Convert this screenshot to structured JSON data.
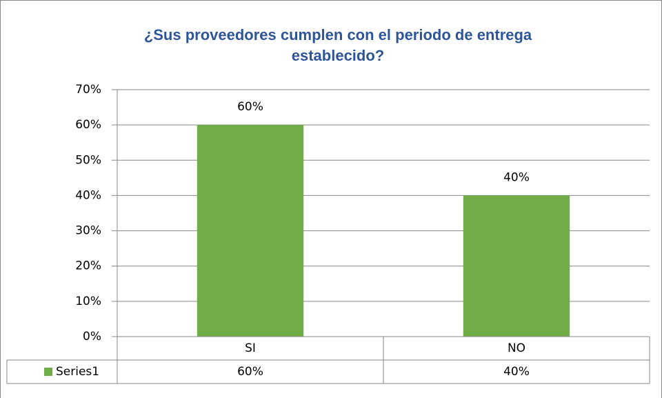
{
  "chart_data": {
    "type": "bar",
    "title": "¿Sus proveedores cumplen con el periodo de entrega establecido?",
    "categories": [
      "SI",
      "NO"
    ],
    "series": [
      {
        "name": "Series1",
        "color": "#70ad47",
        "values": [
          60,
          40
        ],
        "value_labels": [
          "60%",
          "40%"
        ]
      }
    ],
    "ylim": [
      0,
      70
    ],
    "yticks": [
      {
        "value": 0,
        "label": "0%"
      },
      {
        "value": 10,
        "label": "10%"
      },
      {
        "value": 20,
        "label": "20%"
      },
      {
        "value": 30,
        "label": "30%"
      },
      {
        "value": 40,
        "label": "40%"
      },
      {
        "value": 50,
        "label": "50%"
      },
      {
        "value": 60,
        "label": "60%"
      },
      {
        "value": 70,
        "label": "70%"
      }
    ],
    "grid": true,
    "data_table": true
  }
}
